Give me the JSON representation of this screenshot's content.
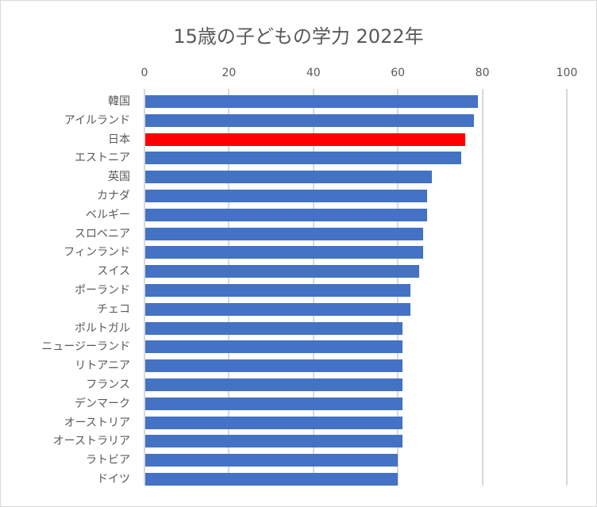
{
  "chart_data": {
    "type": "bar",
    "orientation": "horizontal",
    "title": "15歳の子どもの学力 2022年",
    "xlabel": "",
    "ylabel": "",
    "xlim": [
      0,
      100
    ],
    "x_ticks": [
      "0",
      "20",
      "40",
      "60",
      "80",
      "100"
    ],
    "grid": true,
    "legend": null,
    "categories": [
      "韓国",
      "アイルランド",
      "日本",
      "エストニア",
      "英国",
      "カナダ",
      "ベルギー",
      "スロベニア",
      "フィンランド",
      "スイス",
      "ポーランド",
      "チェコ",
      "ポルトガル",
      "ニュージーランド",
      "リトアニア",
      "フランス",
      "デンマーク",
      "オーストリア",
      "オーストラリア",
      "ラトビア",
      "ドイツ"
    ],
    "values": [
      79,
      78,
      76,
      75,
      68,
      67,
      67,
      66,
      66,
      65,
      63,
      63,
      61,
      61,
      61,
      61,
      61,
      61,
      61,
      60,
      60
    ],
    "colors": {
      "default": "#4472c4",
      "highlight": "#ff0000",
      "highlight_category": "日本"
    }
  }
}
